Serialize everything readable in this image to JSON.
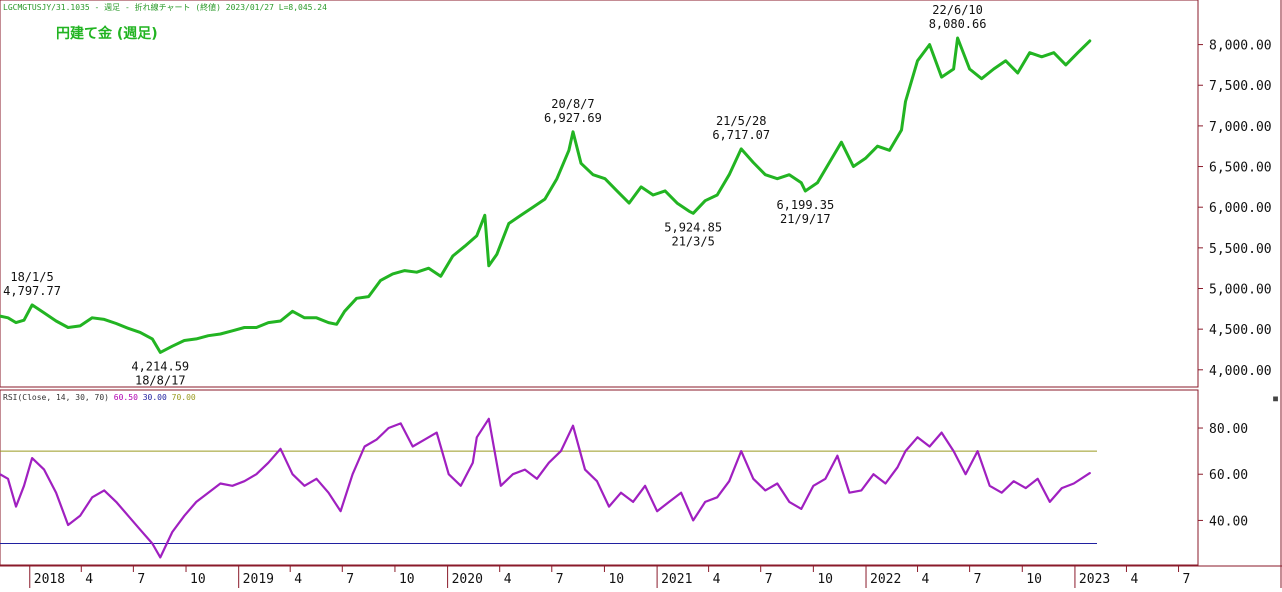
{
  "header": {
    "info": "LGCMGTUSJY/31.1035 - 週足 - 折れ線チャート (終値) 2023/01/27 L=8,045.24",
    "title": "円建て金 (週足)"
  },
  "rsi_legend": {
    "name": "RSI(Close, 14, 30, 70)",
    "current": "60.50",
    "low": "30.00",
    "high": "70.00",
    "colors": {
      "name": "#333333",
      "current": "#b000b0",
      "low": "#2020a0",
      "high": "#9a9a20"
    }
  },
  "corner_icon": "square-icon",
  "chart_data": [
    {
      "type": "line",
      "title": "円建て金 (週足)",
      "xlabel": "",
      "ylabel": "",
      "xlim": [
        "2017-11-10",
        "2023-08-04"
      ],
      "ylim": [
        3850,
        8450
      ],
      "yticks": [
        4000,
        4500,
        5000,
        5500,
        6000,
        6500,
        7000,
        7500,
        8000
      ],
      "ytick_labels": [
        "4,000.00",
        "4,500.00",
        "5,000.00",
        "5,500.00",
        "6,000.00",
        "6,500.00",
        "7,000.00",
        "7,500.00",
        "8,000.00"
      ],
      "grid": false,
      "color": "#22b422",
      "series": [
        {
          "x": [
            "2017-11-10",
            "2017-11-24",
            "2017-12-08",
            "2017-12-22",
            "2018-01-05",
            "2018-01-26",
            "2018-02-16",
            "2018-03-09",
            "2018-03-30",
            "2018-04-20",
            "2018-05-11",
            "2018-06-01",
            "2018-06-22",
            "2018-07-13",
            "2018-08-03",
            "2018-08-17",
            "2018-09-07",
            "2018-09-28",
            "2018-10-19",
            "2018-11-09",
            "2018-11-30",
            "2018-12-21",
            "2019-01-11",
            "2019-02-01",
            "2019-02-22",
            "2019-03-15",
            "2019-04-05",
            "2019-04-26",
            "2019-05-17",
            "2019-06-07",
            "2019-06-21",
            "2019-07-05",
            "2019-07-26",
            "2019-08-16",
            "2019-09-06",
            "2019-09-27",
            "2019-10-18",
            "2019-11-08",
            "2019-11-29",
            "2019-12-20",
            "2020-01-10",
            "2020-01-31",
            "2020-02-21",
            "2020-03-06",
            "2020-03-13",
            "2020-03-27",
            "2020-04-17",
            "2020-05-08",
            "2020-05-29",
            "2020-06-19",
            "2020-07-10",
            "2020-07-31",
            "2020-08-07",
            "2020-08-21",
            "2020-09-11",
            "2020-10-02",
            "2020-10-23",
            "2020-11-13",
            "2020-12-04",
            "2020-12-25",
            "2021-01-15",
            "2021-02-05",
            "2021-02-26",
            "2021-03-05",
            "2021-03-26",
            "2021-04-16",
            "2021-05-07",
            "2021-05-28",
            "2021-06-18",
            "2021-07-09",
            "2021-07-30",
            "2021-08-20",
            "2021-09-10",
            "2021-09-17",
            "2021-10-08",
            "2021-10-29",
            "2021-11-19",
            "2021-12-10",
            "2021-12-31",
            "2022-01-21",
            "2022-02-11",
            "2022-03-04",
            "2022-03-11",
            "2022-04-01",
            "2022-04-22",
            "2022-05-13",
            "2022-06-03",
            "2022-06-10",
            "2022-07-01",
            "2022-07-22",
            "2022-08-12",
            "2022-09-02",
            "2022-09-23",
            "2022-10-14",
            "2022-11-04",
            "2022-11-25",
            "2022-12-16",
            "2023-01-06",
            "2023-01-27"
          ],
          "y": [
            4660,
            4640,
            4580,
            4610,
            4797.77,
            4700,
            4600,
            4520,
            4540,
            4640,
            4620,
            4570,
            4510,
            4460,
            4380,
            4214.59,
            4290,
            4360,
            4380,
            4420,
            4440,
            4480,
            4520,
            4520,
            4580,
            4600,
            4720,
            4640,
            4640,
            4580,
            4560,
            4720,
            4880,
            4900,
            5100,
            5180,
            5220,
            5200,
            5250,
            5150,
            5400,
            5520,
            5650,
            5900,
            5280,
            5420,
            5800,
            5900,
            6000,
            6100,
            6350,
            6700,
            6927.69,
            6540,
            6400,
            6350,
            6200,
            6050,
            6250,
            6150,
            6200,
            6050,
            5950,
            5924.85,
            6080,
            6150,
            6400,
            6717.07,
            6550,
            6400,
            6350,
            6400,
            6300,
            6199.35,
            6300,
            6550,
            6800,
            6500,
            6600,
            6750,
            6700,
            6950,
            7300,
            7800,
            8000,
            7600,
            7700,
            8080.66,
            7700,
            7580,
            7700,
            7800,
            7650,
            7900,
            7850,
            7900,
            7750,
            7900,
            8045.24
          ]
        }
      ],
      "annotations": [
        {
          "date": "18/1/5",
          "value": "4,797.77",
          "x": "2018-01-05",
          "y": 4797.77,
          "pos": "above"
        },
        {
          "date": "18/8/17",
          "value": "4,214.59",
          "x": "2018-08-17",
          "y": 4214.59,
          "pos": "below"
        },
        {
          "date": "20/8/7",
          "value": "6,927.69",
          "x": "2020-08-07",
          "y": 6927.69,
          "pos": "above"
        },
        {
          "date": "21/3/5",
          "value": "5,924.85",
          "x": "2021-03-05",
          "y": 5924.85,
          "pos": "below"
        },
        {
          "date": "21/5/28",
          "value": "6,717.07",
          "x": "2021-05-28",
          "y": 6717.07,
          "pos": "above"
        },
        {
          "date": "21/9/17",
          "value": "6,199.35",
          "x": "2021-09-17",
          "y": 6199.35,
          "pos": "below"
        },
        {
          "date": "22/6/10",
          "value": "8,080.66",
          "x": "2022-06-10",
          "y": 8080.66,
          "pos": "above"
        }
      ]
    },
    {
      "type": "line",
      "title": "RSI(Close, 14, 30, 70)",
      "xlabel": "",
      "ylabel": "",
      "xlim": [
        "2017-11-10",
        "2023-08-04"
      ],
      "ylim": [
        22,
        93
      ],
      "yticks": [
        40,
        60,
        80
      ],
      "ytick_labels": [
        "40.00",
        "60.00",
        "80.00"
      ],
      "levels": [
        30,
        70
      ],
      "grid": false,
      "color": "#a020c0",
      "series": [
        {
          "name": "RSI",
          "x": [
            "2017-11-10",
            "2017-11-24",
            "2017-12-08",
            "2017-12-22",
            "2018-01-05",
            "2018-01-26",
            "2018-02-16",
            "2018-03-09",
            "2018-03-30",
            "2018-04-20",
            "2018-05-11",
            "2018-06-01",
            "2018-06-22",
            "2018-07-13",
            "2018-08-03",
            "2018-08-17",
            "2018-09-07",
            "2018-09-28",
            "2018-10-19",
            "2018-11-09",
            "2018-11-30",
            "2018-12-21",
            "2019-01-11",
            "2019-02-01",
            "2019-02-22",
            "2019-03-15",
            "2019-04-05",
            "2019-04-26",
            "2019-05-17",
            "2019-06-07",
            "2019-06-28",
            "2019-07-19",
            "2019-08-09",
            "2019-08-30",
            "2019-09-20",
            "2019-10-11",
            "2019-11-01",
            "2019-11-22",
            "2019-12-13",
            "2020-01-03",
            "2020-01-24",
            "2020-02-14",
            "2020-02-21",
            "2020-03-13",
            "2020-04-03",
            "2020-04-24",
            "2020-05-15",
            "2020-06-05",
            "2020-06-26",
            "2020-07-17",
            "2020-08-07",
            "2020-08-28",
            "2020-09-18",
            "2020-10-09",
            "2020-10-30",
            "2020-11-20",
            "2020-12-11",
            "2021-01-01",
            "2021-01-22",
            "2021-02-12",
            "2021-03-05",
            "2021-03-26",
            "2021-04-16",
            "2021-05-07",
            "2021-05-28",
            "2021-06-18",
            "2021-07-09",
            "2021-07-30",
            "2021-08-20",
            "2021-09-10",
            "2021-10-01",
            "2021-10-22",
            "2021-11-12",
            "2021-12-03",
            "2021-12-24",
            "2022-01-14",
            "2022-02-04",
            "2022-02-25",
            "2022-03-11",
            "2022-04-01",
            "2022-04-22",
            "2022-05-13",
            "2022-06-03",
            "2022-06-24",
            "2022-07-15",
            "2022-08-05",
            "2022-08-26",
            "2022-09-16",
            "2022-10-07",
            "2022-10-28",
            "2022-11-18",
            "2022-12-09",
            "2022-12-30",
            "2023-01-27"
          ],
          "y": [
            60,
            58,
            46,
            55,
            67,
            62,
            52,
            38,
            42,
            50,
            53,
            48,
            42,
            36,
            30,
            24,
            35,
            42,
            48,
            52,
            56,
            55,
            57,
            60,
            65,
            71,
            60,
            55,
            58,
            52,
            44,
            60,
            72,
            75,
            80,
            82,
            72,
            75,
            78,
            60,
            55,
            65,
            76,
            84,
            55,
            60,
            62,
            58,
            65,
            70,
            81,
            62,
            57,
            46,
            52,
            48,
            55,
            44,
            48,
            52,
            40,
            48,
            50,
            57,
            70,
            58,
            53,
            56,
            48,
            45,
            55,
            58,
            68,
            52,
            53,
            60,
            56,
            63,
            70,
            76,
            72,
            78,
            70,
            60,
            70,
            55,
            52,
            57,
            54,
            58,
            48,
            54,
            56,
            60.5
          ]
        }
      ]
    }
  ],
  "x_axis": {
    "ticks": [
      {
        "label": "2018",
        "date": "2018-01-01",
        "major": true
      },
      {
        "label": "4",
        "date": "2018-04-01",
        "major": false
      },
      {
        "label": "7",
        "date": "2018-07-01",
        "major": false
      },
      {
        "label": "10",
        "date": "2018-10-01",
        "major": false
      },
      {
        "label": "2019",
        "date": "2019-01-01",
        "major": true
      },
      {
        "label": "4",
        "date": "2019-04-01",
        "major": false
      },
      {
        "label": "7",
        "date": "2019-07-01",
        "major": false
      },
      {
        "label": "10",
        "date": "2019-10-01",
        "major": false
      },
      {
        "label": "2020",
        "date": "2020-01-01",
        "major": true
      },
      {
        "label": "4",
        "date": "2020-04-01",
        "major": false
      },
      {
        "label": "7",
        "date": "2020-07-01",
        "major": false
      },
      {
        "label": "10",
        "date": "2020-10-01",
        "major": false
      },
      {
        "label": "2021",
        "date": "2021-01-01",
        "major": true
      },
      {
        "label": "4",
        "date": "2021-04-01",
        "major": false
      },
      {
        "label": "7",
        "date": "2021-07-01",
        "major": false
      },
      {
        "label": "10",
        "date": "2021-10-01",
        "major": false
      },
      {
        "label": "2022",
        "date": "2022-01-01",
        "major": true
      },
      {
        "label": "4",
        "date": "2022-04-01",
        "major": false
      },
      {
        "label": "7",
        "date": "2022-07-01",
        "major": false
      },
      {
        "label": "10",
        "date": "2022-10-01",
        "major": false
      },
      {
        "label": "2023",
        "date": "2023-01-01",
        "major": true
      },
      {
        "label": "4",
        "date": "2023-04-01",
        "major": false
      },
      {
        "label": "7",
        "date": "2023-07-01",
        "major": false
      }
    ]
  }
}
